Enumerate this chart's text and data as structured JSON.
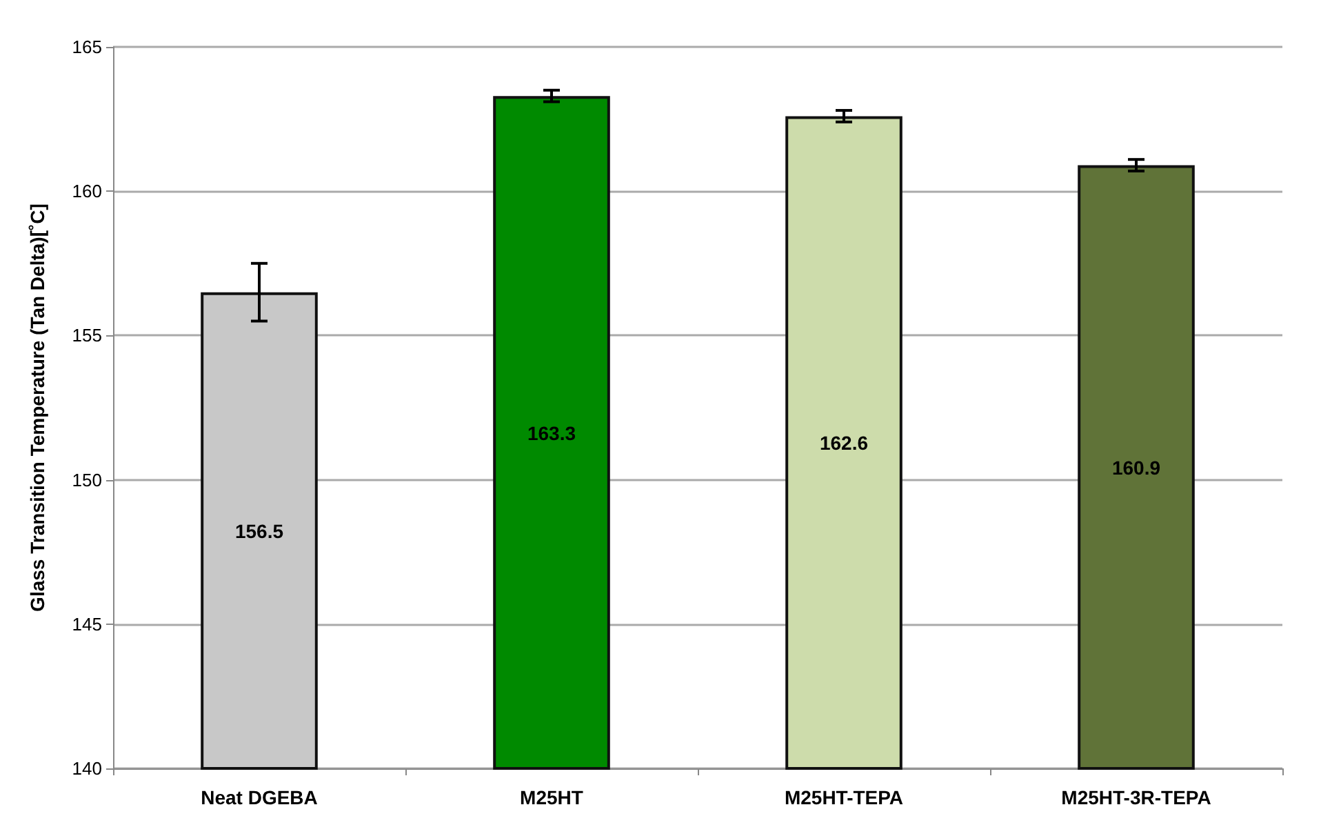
{
  "chart_data": {
    "type": "bar",
    "ylabel": "Glass Transition Temperature (Tan Delta)[˚C]",
    "categories": [
      "Neat DGEBA",
      "M25HT",
      "M25HT-TEPA",
      "M25HT-3R-TEPA"
    ],
    "values": [
      156.5,
      163.3,
      162.6,
      160.9
    ],
    "errors": [
      1.0,
      0.2,
      0.2,
      0.2
    ],
    "colors": [
      "#c8c8c8",
      "#008a00",
      "#cddcab",
      "#607338"
    ],
    "ylim": [
      140,
      165
    ],
    "yticks": [
      140,
      145,
      150,
      155,
      160,
      165
    ],
    "grid": "y",
    "data_labels": true
  }
}
